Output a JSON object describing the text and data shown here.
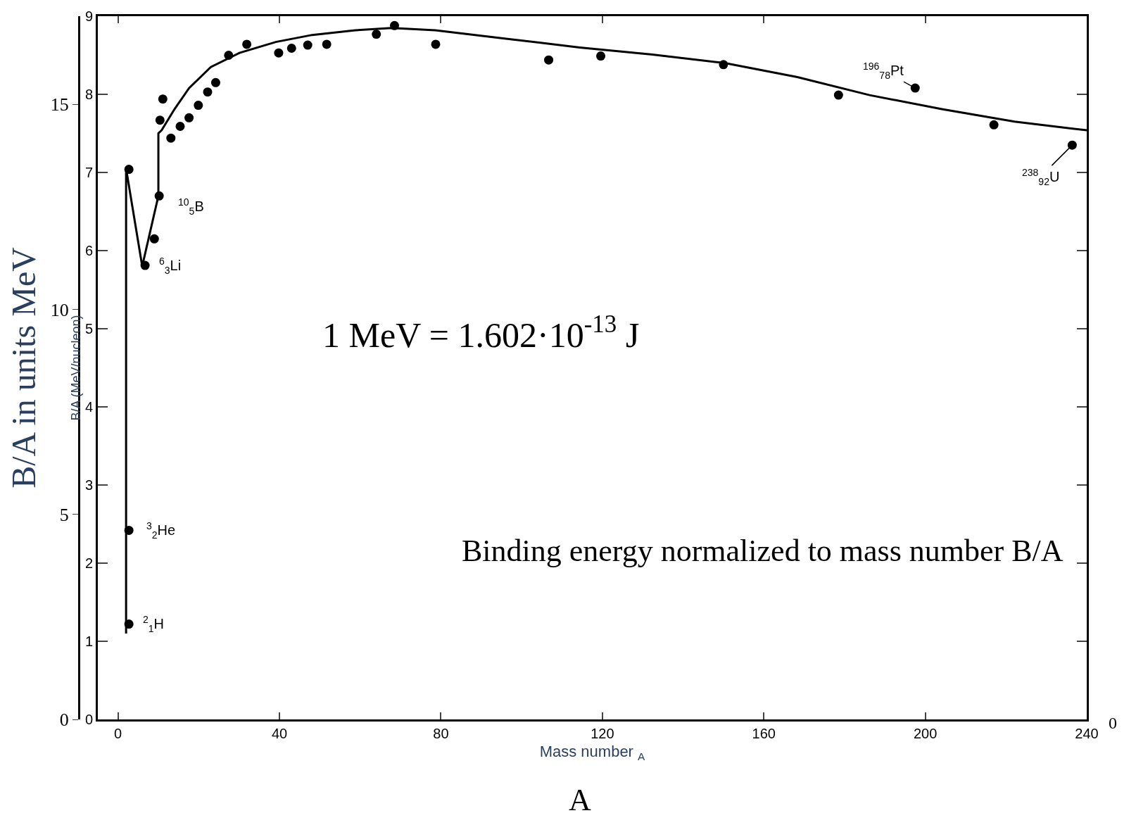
{
  "chart_data": {
    "type": "scatter",
    "xlabel": "Mass number $_{A}$",
    "ylabel": "B/A (MeV/nucleon)",
    "y2label": "B/A in units MeV",
    "xlim": [
      -5,
      240
    ],
    "xticks": [
      0,
      40,
      80,
      120,
      160,
      200,
      240
    ],
    "ylim": [
      0,
      9
    ],
    "yticks": [
      0,
      1,
      2,
      3,
      4,
      5,
      6,
      7,
      8,
      9
    ],
    "y2lim": [
      0,
      17.15
    ],
    "y2ticks": [
      0,
      5,
      10,
      15
    ],
    "series": [
      {
        "type": "line",
        "color": "#000000",
        "marker": "none",
        "line_style": "solid",
        "x": [
          2,
          2,
          6,
          10,
          10,
          10.8,
          14.0,
          17.6,
          23.0,
          30.1,
          39.1,
          48.1,
          58.8,
          67.8,
          78.6,
          96.5,
          114.4,
          132.4,
          150.3,
          168.3,
          186.2,
          204.1,
          222.1,
          240
        ],
        "values": [
          1.1,
          7.05,
          5.8,
          6.7,
          7.5,
          7.54,
          7.81,
          8.08,
          8.35,
          8.53,
          8.67,
          8.76,
          8.82,
          8.85,
          8.82,
          8.71,
          8.6,
          8.51,
          8.4,
          8.22,
          7.99,
          7.81,
          7.65,
          7.54
        ]
      },
      {
        "color": "#000000",
        "marker": "circle",
        "x": [
          2.7,
          2.7,
          2.7,
          6.7,
          9,
          10.2,
          10.4,
          11.1,
          13.1,
          15.4,
          17.6,
          19.9,
          22.2,
          24.2,
          27.4,
          31.9,
          39.8,
          43,
          47,
          51.7,
          64,
          68.5,
          78.7,
          106.7,
          119.6,
          150,
          178.5,
          197.5,
          217,
          236.4
        ],
        "values": [
          1.22,
          2.42,
          7.04,
          5.81,
          6.15,
          6.7,
          7.67,
          7.94,
          7.44,
          7.59,
          7.7,
          7.86,
          8.03,
          8.15,
          8.5,
          8.64,
          8.53,
          8.59,
          8.63,
          8.64,
          8.77,
          8.88,
          8.64,
          8.44,
          8.49,
          8.38,
          7.99,
          8.08,
          7.61,
          7.35
        ]
      }
    ],
    "annotations": [
      {
        "text": "$^{2}$$_{1}$H",
        "x": 2.7,
        "y": 1.22
      },
      {
        "text": "$^{3}$$_{2}$He",
        "x": 2.7,
        "y": 2.42
      },
      {
        "text": "$^{6}$$_{3}$Li",
        "x": 6.7,
        "y": 5.81
      },
      {
        "text": "$^{10}$$_{5}$B",
        "x": 10.2,
        "y": 6.7
      },
      {
        "text": "$^{196}$$_{78}$Pt",
        "x": 197.5,
        "y": 8.08
      },
      {
        "text": "$^{238}$$_{92}$U",
        "x": 236.4,
        "y": 7.35
      },
      "1 MeV = 1.602·10$^{-13}$ J",
      "Binding energy normalized to mass number B/A",
      "A",
      "0"
    ]
  }
}
